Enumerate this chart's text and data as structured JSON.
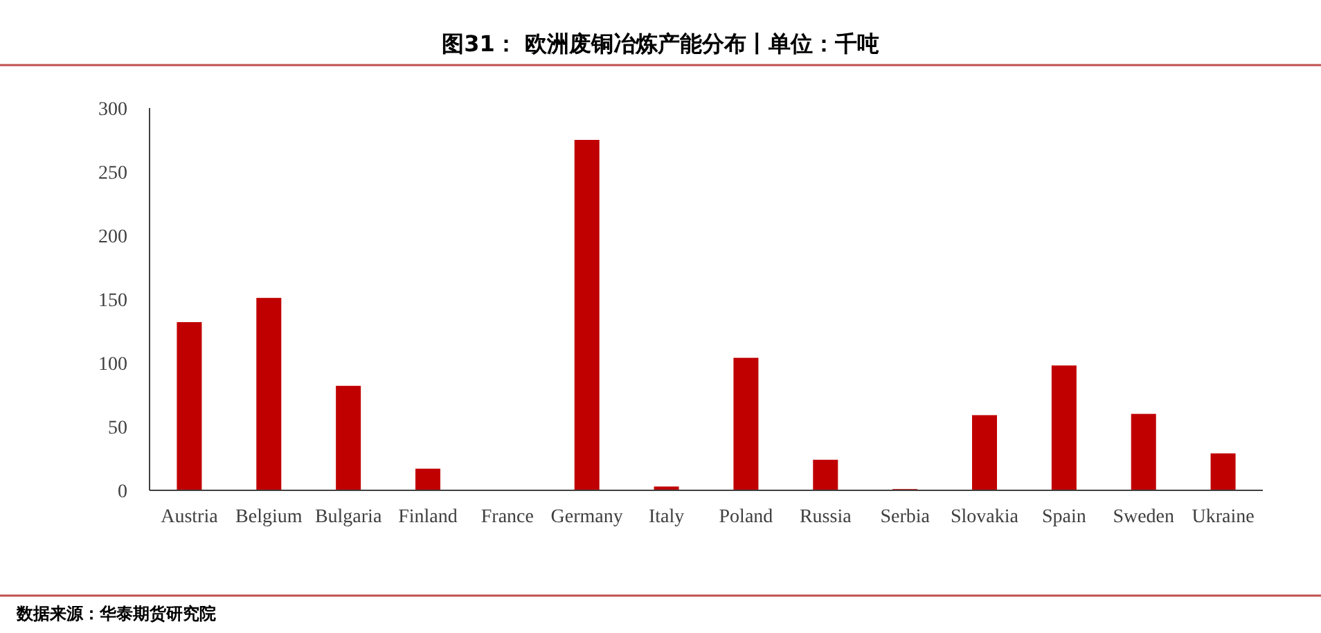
{
  "chart_data": {
    "type": "bar",
    "title": "图31： 欧洲废铜冶炼产能分布丨单位：千吨",
    "categories": [
      "Austria",
      "Belgium",
      "Bulgaria",
      "Finland",
      "France",
      "Germany",
      "Italy",
      "Poland",
      "Russia",
      "Serbia",
      "Slovakia",
      "Spain",
      "Sweden",
      "Ukraine"
    ],
    "values": [
      132,
      151,
      82,
      17,
      0,
      275,
      3,
      104,
      24,
      1,
      59,
      98,
      60,
      29
    ],
    "color": "#c00000",
    "ylim": [
      0,
      300
    ],
    "yticks": [
      0,
      50,
      100,
      150,
      200,
      250,
      300
    ],
    "grid": false,
    "annotations": [
      "数据来源：华泰期货研究院"
    ]
  }
}
